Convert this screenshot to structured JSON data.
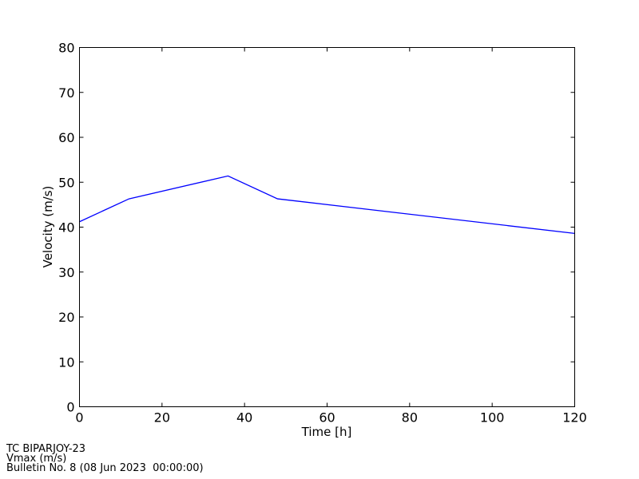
{
  "chart_data": {
    "type": "line",
    "title": "",
    "xlabel": "Time [h]",
    "ylabel": "Velocity (m/s)",
    "xlim": [
      0,
      120
    ],
    "ylim": [
      0,
      80
    ],
    "xticks": [
      0,
      20,
      40,
      60,
      80,
      100,
      120
    ],
    "yticks": [
      0,
      10,
      20,
      30,
      40,
      50,
      60,
      70,
      80
    ],
    "grid": false,
    "series": [
      {
        "x": [
          0,
          12,
          36,
          48,
          120
        ],
        "y": [
          41.2,
          46.3,
          51.4,
          46.3,
          38.6
        ],
        "color": "#0000ff"
      }
    ]
  },
  "footer": {
    "line1": "TC BIPARJOY-23",
    "line2": "Vmax (m/s)",
    "line3": "Bulletin No. 8 (08 Jun 2023  00:00:00)"
  }
}
